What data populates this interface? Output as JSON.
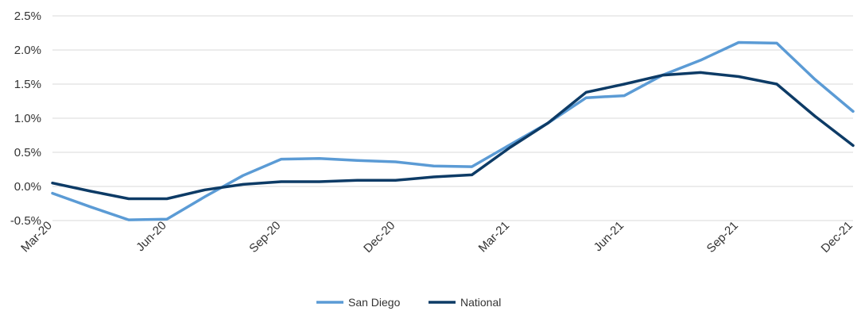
{
  "chart_data": {
    "type": "line",
    "title": "",
    "xlabel": "",
    "ylabel": "",
    "x": [
      "Mar-20",
      "Apr-20",
      "May-20",
      "Jun-20",
      "Jul-20",
      "Aug-20",
      "Sep-20",
      "Oct-20",
      "Nov-20",
      "Dec-20",
      "Jan-21",
      "Feb-21",
      "Mar-21",
      "Apr-21",
      "May-21",
      "Jun-21",
      "Jul-21",
      "Aug-21",
      "Sep-21",
      "Oct-21",
      "Nov-21",
      "Dec-21"
    ],
    "x_tick_labels": [
      "Mar-20",
      "Jun-20",
      "Sep-20",
      "Dec-20",
      "Mar-21",
      "Jun-21",
      "Sep-21",
      "Dec-21"
    ],
    "y_ticks": [
      -0.5,
      0.0,
      0.5,
      1.0,
      1.5,
      2.0,
      2.5
    ],
    "y_tick_labels": [
      "-0.5%",
      "0.0%",
      "0.5%",
      "1.0%",
      "1.5%",
      "2.0%",
      "2.5%"
    ],
    "ylim": [
      -0.5,
      2.5
    ],
    "grid": "horizontal",
    "legend_position": "bottom-center",
    "series": [
      {
        "name": "San Diego",
        "color": "#5b9bd5",
        "values": [
          -0.1,
          -0.3,
          -0.49,
          -0.48,
          -0.15,
          0.16,
          0.4,
          0.41,
          0.38,
          0.36,
          0.3,
          0.29,
          0.61,
          0.93,
          1.3,
          1.33,
          1.63,
          1.85,
          2.11,
          2.1,
          1.57,
          1.1
        ]
      },
      {
        "name": "National",
        "color": "#0d3b66",
        "values": [
          0.05,
          -0.07,
          -0.18,
          -0.18,
          -0.05,
          0.03,
          0.07,
          0.07,
          0.09,
          0.09,
          0.14,
          0.17,
          0.57,
          0.93,
          1.38,
          1.5,
          1.63,
          1.67,
          1.61,
          1.5,
          1.03,
          0.6
        ]
      }
    ]
  }
}
